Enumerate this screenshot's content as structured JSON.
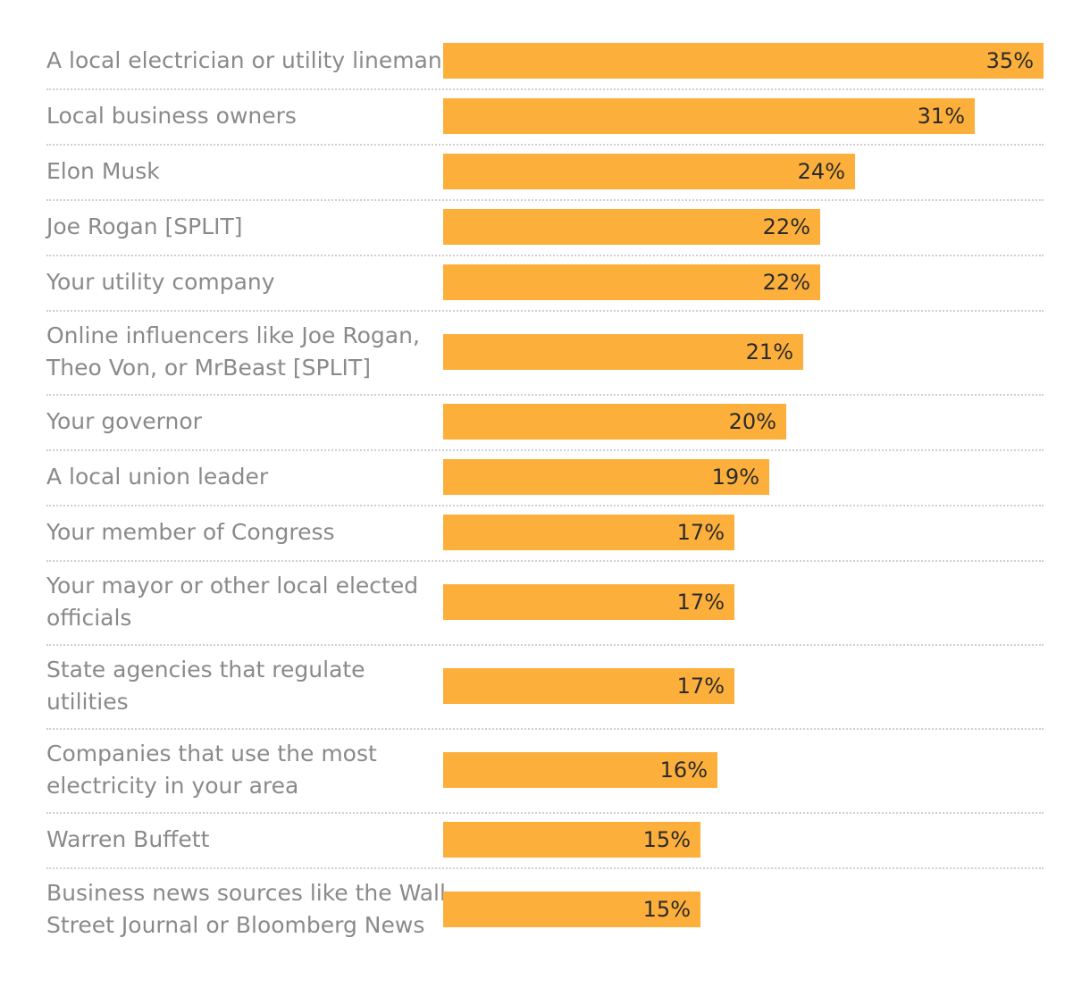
{
  "chart_data": {
    "type": "bar",
    "orientation": "horizontal",
    "title": "",
    "xlabel": "",
    "ylabel": "",
    "xlim": [
      0,
      35
    ],
    "grid": false,
    "value_suffix": "%",
    "bar_color": "#fdaf3c",
    "label_color": "#8a8a8a",
    "value_label_color": "#2b2b2b",
    "separator_color": "#cfcfcf",
    "categories": [
      [
        "A local electrician or utility lineman"
      ],
      [
        "Local business owners"
      ],
      [
        "Elon Musk"
      ],
      [
        "Joe Rogan [SPLIT]"
      ],
      [
        "Your utility company"
      ],
      [
        "Online influencers like Joe Rogan,",
        "Theo Von, or MrBeast [SPLIT]"
      ],
      [
        "Your governor"
      ],
      [
        "A local union leader"
      ],
      [
        "Your member of Congress"
      ],
      [
        "Your mayor or other local elected",
        "officials"
      ],
      [
        "State agencies that regulate",
        "utilities"
      ],
      [
        "Companies that use the most",
        "electricity in your area"
      ],
      [
        "Warren Buffett"
      ],
      [
        "Business news sources like the Wall",
        "Street Journal or Bloomberg News"
      ]
    ],
    "values": [
      35,
      31,
      24,
      22,
      22,
      21,
      20,
      19,
      17,
      17,
      17,
      16,
      15,
      15
    ]
  }
}
